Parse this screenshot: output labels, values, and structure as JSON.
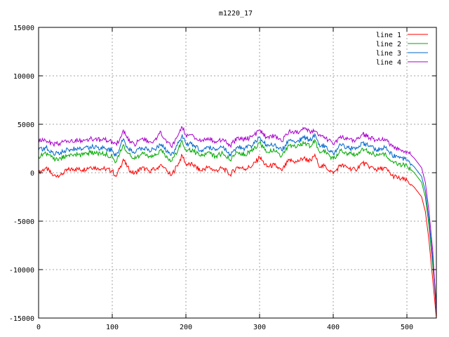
{
  "chart_data": {
    "type": "line",
    "title": "m1220_17",
    "xlabel": "",
    "ylabel": "",
    "xlim": [
      0,
      540
    ],
    "ylim": [
      -15000,
      15000
    ],
    "x_ticks": [
      0,
      100,
      200,
      300,
      400,
      500
    ],
    "y_ticks": [
      -15000,
      -10000,
      -5000,
      0,
      5000,
      10000,
      15000
    ],
    "grid": true,
    "legend_position": "top-right",
    "x": [
      0,
      10,
      20,
      30,
      40,
      50,
      60,
      70,
      80,
      90,
      100,
      105,
      110,
      115,
      120,
      125,
      130,
      140,
      150,
      160,
      165,
      170,
      180,
      190,
      195,
      200,
      210,
      220,
      230,
      240,
      250,
      260,
      270,
      280,
      290,
      300,
      310,
      320,
      330,
      340,
      350,
      360,
      370,
      375,
      380,
      390,
      400,
      410,
      420,
      430,
      440,
      450,
      460,
      470,
      480,
      490,
      500,
      510,
      520,
      525,
      530,
      535,
      540
    ],
    "series": [
      {
        "name": "line 1",
        "color": "#ff0000",
        "values": [
          0,
          500,
          -300,
          -200,
          300,
          400,
          300,
          600,
          500,
          400,
          200,
          -400,
          400,
          1400,
          600,
          200,
          -100,
          500,
          200,
          400,
          800,
          500,
          -300,
          1000,
          1800,
          900,
          800,
          200,
          600,
          200,
          500,
          -200,
          600,
          400,
          700,
          1600,
          600,
          800,
          200,
          1300,
          1100,
          1500,
          1200,
          1900,
          800,
          600,
          -100,
          800,
          500,
          300,
          1000,
          600,
          300,
          500,
          -300,
          -600,
          -800,
          -1500,
          -2500,
          -4000,
          -7000,
          -11000,
          -15000
        ]
      },
      {
        "name": "line 2",
        "color": "#00aa00",
        "values": [
          1700,
          2000,
          1400,
          1500,
          1800,
          1900,
          1800,
          2100,
          2000,
          1900,
          1700,
          1100,
          1900,
          2900,
          2100,
          1700,
          1400,
          2000,
          1700,
          1900,
          2300,
          2000,
          1200,
          2500,
          3300,
          2400,
          2300,
          1700,
          2100,
          1700,
          2000,
          1300,
          2100,
          1900,
          2200,
          3100,
          2100,
          2300,
          1700,
          2800,
          2600,
          3000,
          2700,
          3400,
          2300,
          2100,
          1400,
          2300,
          2000,
          1800,
          2500,
          2100,
          1800,
          2000,
          1200,
          900,
          700,
          0,
          -1000,
          -2500,
          -5500,
          -9500,
          -14000
        ]
      },
      {
        "name": "line 3",
        "color": "#0066cc",
        "values": [
          2300,
          2600,
          2000,
          2100,
          2400,
          2500,
          2400,
          2700,
          2600,
          2500,
          2300,
          1700,
          2500,
          3500,
          2700,
          2300,
          2000,
          2600,
          2300,
          2500,
          2900,
          2600,
          1800,
          3100,
          3900,
          3000,
          2900,
          2300,
          2700,
          2300,
          2600,
          1900,
          2700,
          2500,
          2800,
          3700,
          2700,
          2900,
          2300,
          3400,
          3200,
          3600,
          3300,
          4000,
          2900,
          2700,
          2000,
          2900,
          2600,
          2400,
          3100,
          2700,
          2400,
          2600,
          1800,
          1500,
          1300,
          600,
          -400,
          -1900,
          -4900,
          -8900,
          -13500
        ]
      },
      {
        "name": "line 4",
        "color": "#aa00cc",
        "values": [
          3500,
          3300,
          2900,
          3100,
          3300,
          3400,
          3300,
          3500,
          3400,
          3400,
          3200,
          3000,
          3400,
          4400,
          3600,
          3200,
          2900,
          3500,
          3200,
          3400,
          4300,
          3500,
          2700,
          4000,
          4700,
          3900,
          3800,
          3200,
          3600,
          3200,
          3500,
          2800,
          3600,
          3400,
          3700,
          4400,
          3600,
          3800,
          3200,
          4300,
          4100,
          4500,
          4200,
          4300,
          3800,
          3600,
          2900,
          3800,
          3500,
          3300,
          4000,
          3600,
          3300,
          3500,
          2700,
          2400,
          2200,
          1500,
          500,
          -1000,
          -4000,
          -8000,
          -14500
        ]
      }
    ]
  }
}
